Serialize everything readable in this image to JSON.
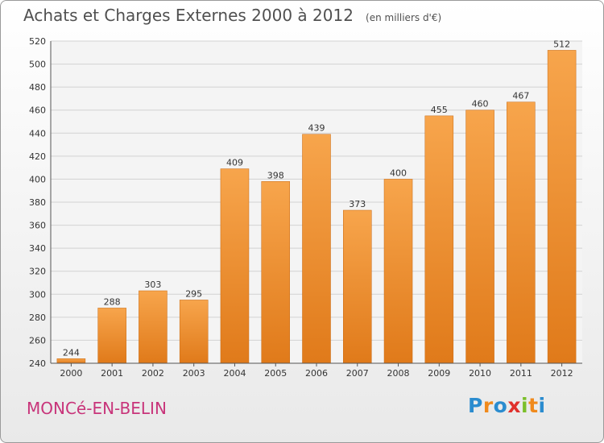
{
  "chart_data": {
    "type": "bar",
    "title": "Achats et Charges Externes 2000 à 2012",
    "subtitle": "(en milliers d'€)",
    "categories": [
      "2000",
      "2001",
      "2002",
      "2003",
      "2004",
      "2005",
      "2006",
      "2007",
      "2008",
      "2009",
      "2010",
      "2011",
      "2012"
    ],
    "values": [
      244,
      288,
      303,
      295,
      409,
      398,
      439,
      373,
      400,
      455,
      460,
      467,
      512
    ],
    "ylim": [
      240,
      520
    ],
    "yticks": [
      240,
      260,
      280,
      300,
      320,
      340,
      360,
      380,
      400,
      420,
      440,
      460,
      480,
      500,
      520
    ],
    "grid": true,
    "bar_color": "#f0902a"
  },
  "footer": {
    "town": "MONCé-EN-BELIN",
    "logo_letters": [
      "P",
      "r",
      "o",
      "x",
      "i",
      "t",
      "i"
    ],
    "logo_colors": [
      "#2b8ccf",
      "#f08a1c",
      "#2b8ccf",
      "#e0302c",
      "#7bbf2a",
      "#f08a1c",
      "#2b8ccf"
    ]
  }
}
